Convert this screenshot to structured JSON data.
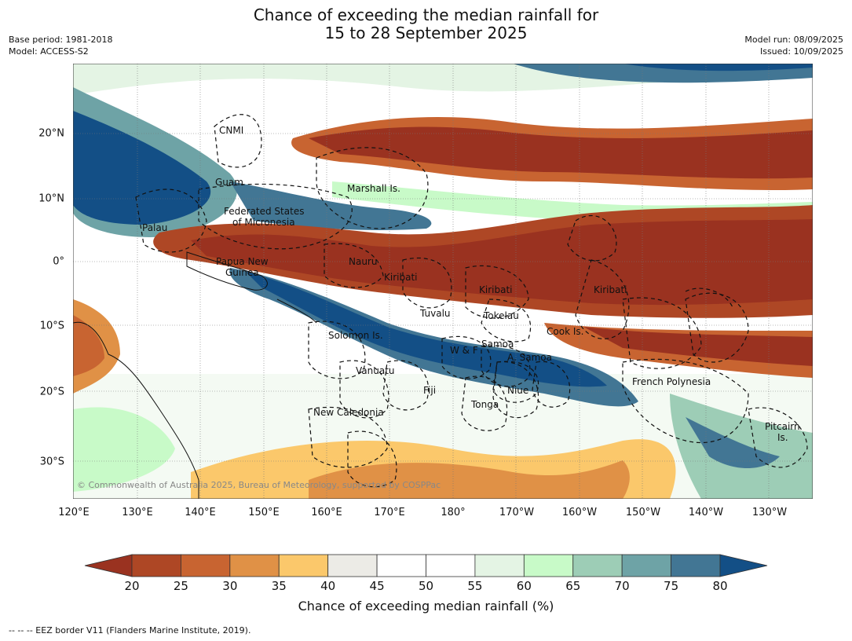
{
  "title": {
    "line1": "Chance of exceeding the median rainfall for",
    "line2": "15 to 28 September 2025"
  },
  "meta": {
    "base_period": "Base period: 1981-2018",
    "model": "Model: ACCESS-S2",
    "model_run": "Model run: 08/09/2025",
    "issued": "Issued: 10/09/2025"
  },
  "map": {
    "lat_labels": [
      "20°N",
      "10°N",
      "0°",
      "10°S",
      "20°S",
      "30°S"
    ],
    "lon_labels": [
      "120°E",
      "130°E",
      "140°E",
      "150°E",
      "160°E",
      "170°E",
      "180°",
      "170°W",
      "160°W",
      "150°W",
      "140°W",
      "130°W"
    ],
    "regions": [
      "CNMI",
      "Guam",
      "Marshall Is.",
      "Federated States",
      "of Micronesia",
      "Palau",
      "Papua New",
      "Guinea",
      "Nauru",
      "Kiribati",
      "Kiribati",
      "Kiribati",
      "Tuvalu",
      "Tokelau",
      "Cook Is.",
      "Solomon Is.",
      "W & F",
      "Samoa",
      "A. Samoa",
      "Vanuatu",
      "Fiji",
      "Niue",
      "Tonga",
      "French Polynesia",
      "New Caledonia",
      "Pitcairn",
      "Is."
    ],
    "copyright": "© Commonwealth of Australia 2025, Bureau of Meteorology, supported by COSPPac"
  },
  "colorbar": {
    "ticks": [
      "20",
      "25",
      "30",
      "35",
      "40",
      "45",
      "50",
      "55",
      "60",
      "65",
      "70",
      "75",
      "80"
    ],
    "colors": [
      "#9a3220",
      "#ae4725",
      "#c86431",
      "#e09146",
      "#fbc86b",
      "#ecebe6",
      "#ffffff",
      "#ffffff",
      "#e4f4e4",
      "#c8fac8",
      "#9dcdb6",
      "#6ea3a6",
      "#427694",
      "#134f86"
    ],
    "label": "Chance of exceeding median rainfall (%)"
  },
  "footnote": "--  --  -- EEZ border V11 (Flanders Marine Institute, 2019)."
}
